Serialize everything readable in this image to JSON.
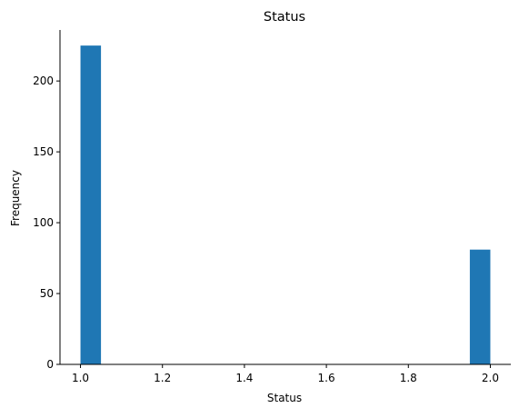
{
  "chart_data": {
    "type": "bar",
    "title": "Status",
    "xlabel": "Status",
    "ylabel": "Frequency",
    "bar_color": "#1f77b4",
    "xlim": [
      0.95,
      2.05
    ],
    "ylim": [
      0,
      236
    ],
    "x_ticks": [
      {
        "value": 1.0,
        "label": "1.0"
      },
      {
        "value": 1.2,
        "label": "1.2"
      },
      {
        "value": 1.4,
        "label": "1.4"
      },
      {
        "value": 1.6,
        "label": "1.6"
      },
      {
        "value": 1.8,
        "label": "1.8"
      },
      {
        "value": 2.0,
        "label": "2.0"
      }
    ],
    "y_ticks": [
      {
        "value": 0,
        "label": "0"
      },
      {
        "value": 50,
        "label": "50"
      },
      {
        "value": 100,
        "label": "100"
      },
      {
        "value": 150,
        "label": "150"
      },
      {
        "value": 200,
        "label": "200"
      }
    ],
    "bars": [
      {
        "x_start": 1.0,
        "x_end": 1.05,
        "value": 225
      },
      {
        "x_start": 1.95,
        "x_end": 2.0,
        "value": 81
      }
    ],
    "grid": false,
    "spines": [
      "left",
      "bottom"
    ]
  }
}
